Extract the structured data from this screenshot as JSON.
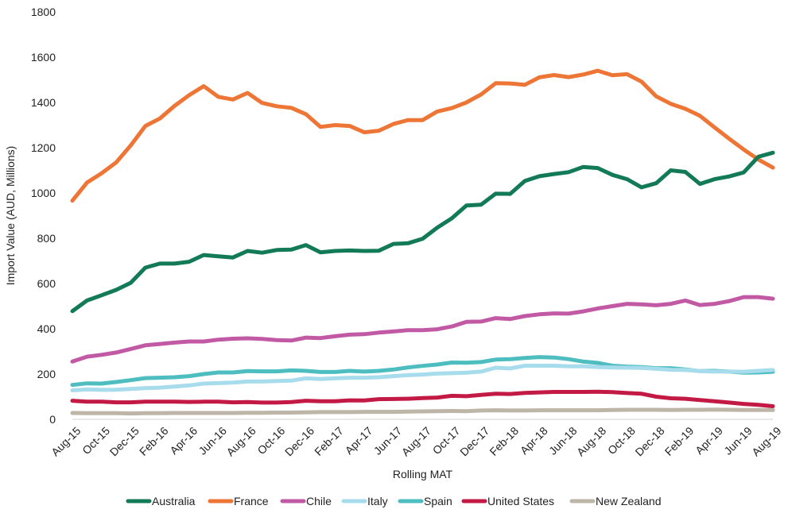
{
  "chart_data": {
    "type": "line",
    "title": "",
    "xlabel": "Rolling MAT",
    "ylabel": "Import Value (AUD, Millions)",
    "ylim": [
      0,
      1800
    ],
    "yticks": [
      0,
      200,
      400,
      600,
      800,
      1000,
      1200,
      1400,
      1600,
      1800
    ],
    "grid": false,
    "legend_position": "bottom",
    "x": [
      "Aug-15",
      "Sep-15",
      "Oct-15",
      "Nov-15",
      "Dec-15",
      "Jan-16",
      "Feb-16",
      "Mar-16",
      "Apr-16",
      "May-16",
      "Jun-16",
      "Jul-16",
      "Aug-16",
      "Sep-16",
      "Oct-16",
      "Nov-16",
      "Dec-16",
      "Jan-17",
      "Feb-17",
      "Mar-17",
      "Apr-17",
      "May-17",
      "Jun-17",
      "Jul-17",
      "Aug-17",
      "Sep-17",
      "Oct-17",
      "Nov-17",
      "Dec-17",
      "Jan-18",
      "Feb-18",
      "Mar-18",
      "Apr-18",
      "May-18",
      "Jun-18",
      "Jul-18",
      "Aug-18",
      "Sep-18",
      "Oct-18",
      "Nov-18",
      "Dec-18",
      "Jan-19",
      "Feb-19",
      "Mar-19",
      "Apr-19",
      "May-19",
      "Jun-19",
      "Jul-19",
      "Aug-19"
    ],
    "tick_labels": [
      "Aug-15",
      "Oct-15",
      "Dec-15",
      "Feb-16",
      "Apr-16",
      "Jun-16",
      "Aug-16",
      "Oct-16",
      "Dec-16",
      "Feb-17",
      "Apr-17",
      "Jun-17",
      "Aug-17",
      "Oct-17",
      "Dec-17",
      "Feb-18",
      "Apr-18",
      "Jun-18",
      "Aug-18",
      "Oct-18",
      "Dec-18",
      "Feb-19",
      "Apr-19",
      "Jun-19",
      "Aug-19"
    ],
    "series": [
      {
        "name": "Australia",
        "color": "#127A57",
        "values": [
          478,
          525,
          548,
          572,
          603,
          670,
          688,
          688,
          696,
          726,
          720,
          715,
          744,
          736,
          748,
          750,
          770,
          738,
          744,
          746,
          744,
          745,
          775,
          778,
          798,
          847,
          888,
          945,
          948,
          997,
          996,
          1053,
          1074,
          1084,
          1092,
          1115,
          1110,
          1080,
          1061,
          1025,
          1043,
          1100,
          1093,
          1040,
          1061,
          1073,
          1091,
          1160,
          1178
        ]
      },
      {
        "name": "France",
        "color": "#ED7535",
        "values": [
          966,
          1046,
          1087,
          1135,
          1210,
          1296,
          1329,
          1385,
          1432,
          1472,
          1425,
          1413,
          1442,
          1398,
          1383,
          1376,
          1348,
          1292,
          1300,
          1296,
          1268,
          1275,
          1305,
          1322,
          1322,
          1360,
          1375,
          1400,
          1435,
          1485,
          1484,
          1478,
          1511,
          1521,
          1512,
          1523,
          1540,
          1520,
          1525,
          1492,
          1427,
          1394,
          1372,
          1341,
          1290,
          1240,
          1192,
          1148,
          1112
        ]
      },
      {
        "name": "Chile",
        "color": "#C159A5",
        "values": [
          255,
          277,
          285,
          295,
          311,
          327,
          333,
          339,
          344,
          344,
          352,
          356,
          358,
          355,
          350,
          348,
          361,
          359,
          367,
          374,
          376,
          383,
          388,
          394,
          394,
          398,
          410,
          431,
          432,
          447,
          443,
          456,
          464,
          468,
          467,
          477,
          490,
          500,
          510,
          508,
          504,
          510,
          525,
          505,
          510,
          522,
          540,
          540,
          533
        ]
      },
      {
        "name": "Italy",
        "color": "#A7DCEC",
        "values": [
          128,
          132,
          130,
          131,
          134,
          138,
          140,
          145,
          150,
          158,
          160,
          162,
          167,
          167,
          169,
          171,
          181,
          178,
          181,
          184,
          184,
          186,
          191,
          195,
          198,
          202,
          204,
          206,
          211,
          228,
          225,
          237,
          237,
          237,
          234,
          234,
          231,
          229,
          228,
          227,
          223,
          219,
          218,
          213,
          211,
          211,
          210,
          214,
          218
        ]
      },
      {
        "name": "Spain",
        "color": "#4DBDC0",
        "values": [
          152,
          159,
          158,
          165,
          173,
          182,
          184,
          186,
          191,
          200,
          207,
          207,
          213,
          212,
          212,
          216,
          214,
          209,
          209,
          214,
          211,
          214,
          220,
          229,
          236,
          242,
          251,
          250,
          253,
          264,
          266,
          271,
          275,
          273,
          266,
          255,
          249,
          237,
          233,
          231,
          226,
          226,
          220,
          213,
          214,
          211,
          206,
          207,
          210
        ]
      },
      {
        "name": "United States",
        "color": "#C21A44",
        "values": [
          82,
          78,
          78,
          75,
          75,
          78,
          78,
          78,
          77,
          78,
          78,
          75,
          76,
          74,
          74,
          76,
          82,
          80,
          80,
          84,
          83,
          89,
          90,
          91,
          94,
          96,
          104,
          102,
          108,
          113,
          112,
          117,
          119,
          121,
          121,
          121,
          122,
          120,
          116,
          113,
          100,
          93,
          91,
          85,
          80,
          74,
          68,
          64,
          58
        ]
      },
      {
        "name": "New Zealand",
        "color": "#BDB5A7",
        "values": [
          28,
          27,
          27,
          27,
          26,
          27,
          27,
          28,
          28,
          28,
          28,
          28,
          29,
          29,
          30,
          30,
          31,
          32,
          32,
          32,
          33,
          33,
          33,
          34,
          35,
          36,
          37,
          36,
          39,
          40,
          39,
          39,
          40,
          40,
          40,
          40,
          40,
          41,
          42,
          42,
          42,
          41,
          42,
          42,
          43,
          42,
          41,
          41,
          41
        ]
      }
    ]
  }
}
